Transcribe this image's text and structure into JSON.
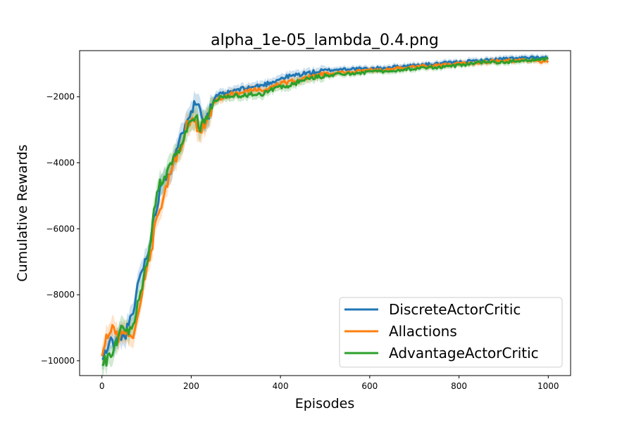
{
  "chart_data": {
    "type": "line",
    "title": "alpha_1e-05_lambda_0.4.png",
    "xlabel": "Episodes",
    "ylabel": "Cumulative Rewards",
    "xlim": [
      -50,
      1050
    ],
    "ylim": [
      -10450,
      -600
    ],
    "xticks": [
      0,
      200,
      400,
      600,
      800,
      1000
    ],
    "yticks": [
      -10000,
      -8000,
      -6000,
      -4000,
      -2000
    ],
    "grid": false,
    "legend_position": "lower-right",
    "series": [
      {
        "name": "DiscreteActorCritic",
        "color": "#1f77b4",
        "x": [
          0,
          10,
          20,
          30,
          40,
          50,
          60,
          70,
          80,
          90,
          100,
          110,
          120,
          130,
          140,
          150,
          160,
          170,
          180,
          190,
          200,
          210,
          220,
          230,
          240,
          250,
          260,
          280,
          300,
          320,
          340,
          360,
          380,
          400,
          420,
          450,
          480,
          500,
          550,
          600,
          650,
          700,
          750,
          800,
          850,
          900,
          950,
          1000
        ],
        "y": [
          -10000,
          -9700,
          -9400,
          -9500,
          -9200,
          -9300,
          -8900,
          -8600,
          -7700,
          -7200,
          -6900,
          -6200,
          -5500,
          -4800,
          -4400,
          -4300,
          -4000,
          -3600,
          -3100,
          -2600,
          -2400,
          -2200,
          -2300,
          -2700,
          -2500,
          -2100,
          -1950,
          -1900,
          -1800,
          -1750,
          -1700,
          -1650,
          -1550,
          -1450,
          -1380,
          -1300,
          -1250,
          -1200,
          -1150,
          -1150,
          -1100,
          -1050,
          -1000,
          -950,
          -900,
          -850,
          -820,
          -820
        ]
      },
      {
        "name": "Allactions",
        "color": "#ff7f0e",
        "x": [
          0,
          10,
          20,
          30,
          40,
          50,
          60,
          70,
          80,
          90,
          100,
          110,
          120,
          130,
          140,
          150,
          160,
          170,
          180,
          190,
          200,
          210,
          220,
          230,
          240,
          250,
          260,
          280,
          300,
          320,
          340,
          360,
          380,
          400,
          420,
          450,
          480,
          500,
          550,
          600,
          650,
          700,
          750,
          800,
          850,
          900,
          950,
          1000
        ],
        "y": [
          -10000,
          -9300,
          -9000,
          -9200,
          -9300,
          -9100,
          -9100,
          -9300,
          -8700,
          -7900,
          -7200,
          -6800,
          -5800,
          -5500,
          -5000,
          -4400,
          -4100,
          -3700,
          -3400,
          -2900,
          -2800,
          -2800,
          -3100,
          -2800,
          -2600,
          -2200,
          -2050,
          -1950,
          -1900,
          -1850,
          -1800,
          -1800,
          -1700,
          -1600,
          -1550,
          -1450,
          -1350,
          -1300,
          -1250,
          -1200,
          -1150,
          -1100,
          -1050,
          -1000,
          -950,
          -900,
          -900,
          -950
        ]
      },
      {
        "name": "AdvantageActorCritic",
        "color": "#2ca02c",
        "x": [
          0,
          10,
          20,
          30,
          40,
          50,
          60,
          70,
          80,
          90,
          100,
          110,
          120,
          130,
          140,
          150,
          160,
          170,
          180,
          190,
          200,
          210,
          220,
          230,
          240,
          250,
          260,
          280,
          300,
          320,
          340,
          360,
          380,
          400,
          420,
          450,
          480,
          500,
          550,
          600,
          650,
          700,
          750,
          800,
          850,
          900,
          950,
          1000
        ],
        "y": [
          -10000,
          -10000,
          -9900,
          -9500,
          -9100,
          -8900,
          -9200,
          -9000,
          -8300,
          -7800,
          -7000,
          -6300,
          -5200,
          -4600,
          -4400,
          -4200,
          -3800,
          -3800,
          -3400,
          -2900,
          -2700,
          -2600,
          -2900,
          -2800,
          -2500,
          -2100,
          -2050,
          -2000,
          -1950,
          -1950,
          -1900,
          -1900,
          -1800,
          -1700,
          -1650,
          -1500,
          -1400,
          -1350,
          -1300,
          -1250,
          -1200,
          -1150,
          -1100,
          -1050,
          -950,
          -950,
          -900,
          -850
        ]
      }
    ]
  }
}
